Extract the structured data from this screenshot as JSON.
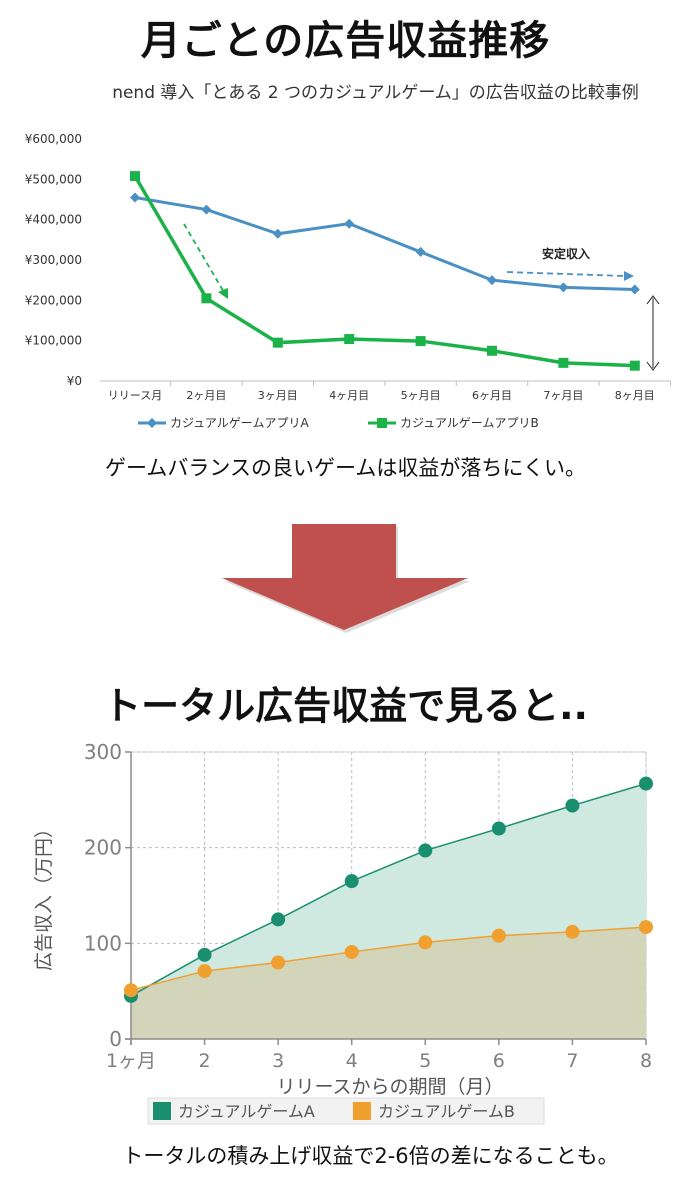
{
  "title1": "月ごとの広告収益推移",
  "subtitle1": "nend 導入「とある 2 つのカジュアルゲーム」の広告収益の比較事例",
  "annotation_stable": "安定収入",
  "caption1": "ゲームバランスの良いゲームは収益が落ちにくい。",
  "title2": "トータル広告収益で見ると..",
  "caption2": "トータルの積み上げ収益で2-6倍の差になることも。",
  "colors": {
    "blue": "#4a90c4",
    "green": "#1bb24a",
    "teal": "#1a8f70",
    "orange": "#f0a02e",
    "arrow": "#c0504d"
  },
  "chart_data": [
    {
      "type": "line",
      "yticks": [
        "¥0",
        "¥100,000",
        "¥200,000",
        "¥300,000",
        "¥400,000",
        "¥500,000",
        "¥600,000"
      ],
      "ylim": [
        0,
        600000
      ],
      "categories": [
        "リリース月",
        "2ヶ月目",
        "3ヶ月目",
        "4ヶ月目",
        "5ヶ月目",
        "6ヶ月目",
        "7ヶ月目",
        "8ヶ月目"
      ],
      "series": [
        {
          "name": "カジュアルゲームアプリA",
          "color": "#4a90c4",
          "marker": "diamond",
          "values": [
            455000,
            425000,
            365000,
            390000,
            320000,
            250000,
            232000,
            227000
          ]
        },
        {
          "name": "カジュアルゲームアプリB",
          "color": "#1bb24a",
          "marker": "square",
          "values": [
            508000,
            205000,
            95000,
            104000,
            99000,
            75000,
            45000,
            38000
          ]
        }
      ],
      "grid": false,
      "legend": "bottom"
    },
    {
      "type": "area",
      "ylabel": "広告収入（万円）",
      "xlabel": "リリースからの期間（月）",
      "yticks": [
        "0",
        "100",
        "200",
        "300"
      ],
      "ylim": [
        0,
        300
      ],
      "xticks": [
        "1ヶ月",
        "2",
        "3",
        "4",
        "5",
        "6",
        "7",
        "8"
      ],
      "series": [
        {
          "name": "カジュアルゲームA",
          "color": "#1a8f70",
          "values": [
            45,
            88,
            125,
            165,
            197,
            220,
            244,
            267
          ]
        },
        {
          "name": "カジュアルゲームB",
          "color": "#f0a02e",
          "values": [
            51,
            71,
            80,
            91,
            101,
            108,
            112,
            117
          ]
        }
      ],
      "grid": true,
      "legend": "bottom"
    }
  ]
}
